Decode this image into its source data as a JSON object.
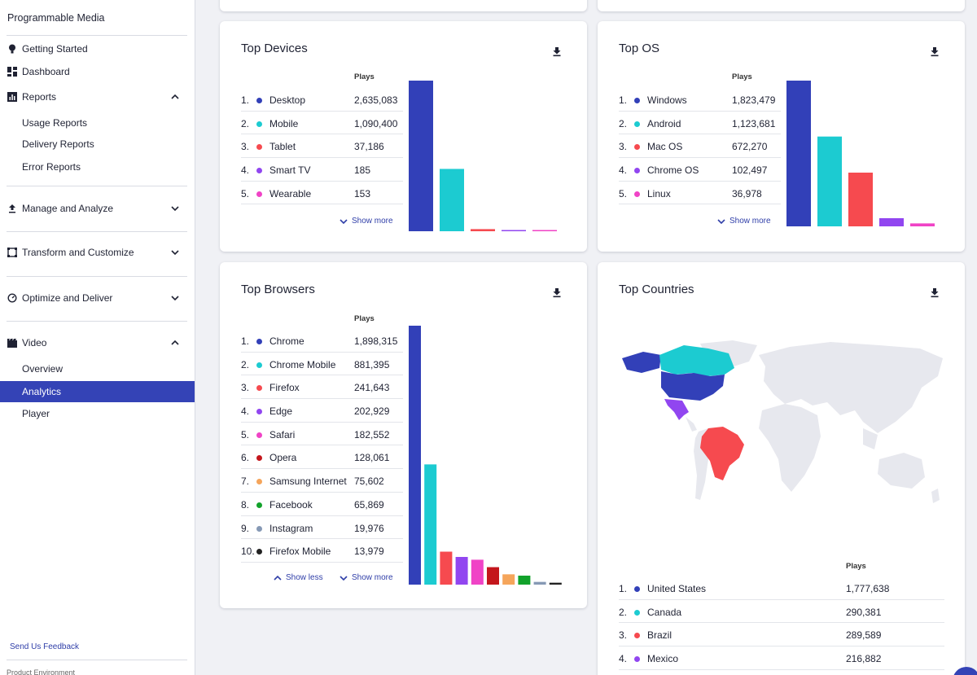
{
  "sidebar": {
    "brand": "Programmable Media",
    "items": [
      {
        "label": "Getting Started",
        "icon": "bulb-icon"
      },
      {
        "label": "Dashboard",
        "icon": "dashboard-icon"
      },
      {
        "label": "Reports",
        "icon": "reports-icon",
        "expanded": true
      },
      {
        "label": "Manage and Analyze",
        "icon": "upload-icon",
        "expanded": false
      },
      {
        "label": "Transform and Customize",
        "icon": "transform-icon",
        "expanded": false
      },
      {
        "label": "Optimize and Deliver",
        "icon": "gauge-icon",
        "expanded": false
      },
      {
        "label": "Video",
        "icon": "video-icon",
        "expanded": true
      }
    ],
    "reports_sub": [
      "Usage Reports",
      "Delivery Reports",
      "Error Reports"
    ],
    "video_sub": [
      "Overview",
      "Analytics",
      "Player"
    ],
    "active_item": "Analytics",
    "feedback": "Send Us Feedback",
    "environment": "Product Environment"
  },
  "colors": {
    "accent": "#3443b6",
    "series": [
      "#3240b8",
      "#1ccbd1",
      "#f64a4f",
      "#9146f0",
      "#f043c6",
      "#c4161c",
      "#f5a55b",
      "#12a22b",
      "#8699b5",
      "#222222"
    ]
  },
  "devices": {
    "title": "Top Devices",
    "plays_header": "Plays",
    "show_more": "Show more",
    "rows": [
      {
        "rank": "1.",
        "name": "Desktop",
        "value": "2,635,083"
      },
      {
        "rank": "2.",
        "name": "Mobile",
        "value": "1,090,400"
      },
      {
        "rank": "3.",
        "name": "Tablet",
        "value": "37,186"
      },
      {
        "rank": "4.",
        "name": "Smart TV",
        "value": "185"
      },
      {
        "rank": "5.",
        "name": "Wearable",
        "value": "153"
      }
    ]
  },
  "os": {
    "title": "Top OS",
    "plays_header": "Plays",
    "show_more": "Show more",
    "rows": [
      {
        "rank": "1.",
        "name": "Windows",
        "value": "1,823,479"
      },
      {
        "rank": "2.",
        "name": "Android",
        "value": "1,123,681"
      },
      {
        "rank": "3.",
        "name": "Mac OS",
        "value": "672,270"
      },
      {
        "rank": "4.",
        "name": "Chrome OS",
        "value": "102,497"
      },
      {
        "rank": "5.",
        "name": "Linux",
        "value": "36,978"
      }
    ]
  },
  "browsers": {
    "title": "Top Browsers",
    "plays_header": "Plays",
    "show_less": "Show less",
    "show_more": "Show more",
    "rows": [
      {
        "rank": "1.",
        "name": "Chrome",
        "value": "1,898,315"
      },
      {
        "rank": "2.",
        "name": "Chrome Mobile",
        "value": "881,395"
      },
      {
        "rank": "3.",
        "name": "Firefox",
        "value": "241,643"
      },
      {
        "rank": "4.",
        "name": "Edge",
        "value": "202,929"
      },
      {
        "rank": "5.",
        "name": "Safari",
        "value": "182,552"
      },
      {
        "rank": "6.",
        "name": "Opera",
        "value": "128,061"
      },
      {
        "rank": "7.",
        "name": "Samsung Internet",
        "value": "75,602"
      },
      {
        "rank": "8.",
        "name": "Facebook",
        "value": "65,869"
      },
      {
        "rank": "9.",
        "name": "Instagram",
        "value": "19,976"
      },
      {
        "rank": "10.",
        "name": "Firefox Mobile",
        "value": "13,979"
      }
    ]
  },
  "countries": {
    "title": "Top Countries",
    "plays_header": "Plays",
    "rows": [
      {
        "rank": "1.",
        "name": "United States",
        "value": "1,777,638"
      },
      {
        "rank": "2.",
        "name": "Canada",
        "value": "290,381"
      },
      {
        "rank": "3.",
        "name": "Brazil",
        "value": "289,589"
      },
      {
        "rank": "4.",
        "name": "Mexico",
        "value": "216,882"
      }
    ]
  },
  "chart_data": [
    {
      "type": "bar",
      "categories": [
        "Desktop",
        "Mobile",
        "Tablet",
        "Smart TV",
        "Wearable"
      ],
      "values": [
        2635083,
        1090400,
        37186,
        185,
        153
      ]
    },
    {
      "type": "bar",
      "categories": [
        "Windows",
        "Android",
        "Mac OS",
        "Chrome OS",
        "Linux"
      ],
      "values": [
        1823479,
        1123681,
        672270,
        102497,
        36978
      ]
    },
    {
      "type": "bar",
      "categories": [
        "Chrome",
        "Chrome Mobile",
        "Firefox",
        "Edge",
        "Safari",
        "Opera",
        "Samsung Internet",
        "Facebook",
        "Instagram",
        "Firefox Mobile"
      ],
      "values": [
        1898315,
        881395,
        241643,
        202929,
        182552,
        128061,
        75602,
        65869,
        19976,
        13979
      ]
    }
  ]
}
